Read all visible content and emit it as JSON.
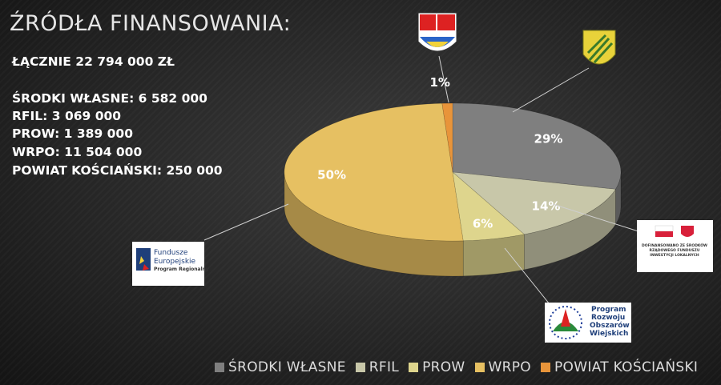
{
  "chart_data": {
    "type": "pie",
    "title": "ŹRÓDŁA FINANSOWANIA:",
    "categories": [
      "ŚRODKI WŁASNE",
      "RFIL",
      "PROW",
      "WRPO",
      "POWIAT KOŚCIAŃSKI"
    ],
    "values": [
      29,
      14,
      6,
      50,
      1
    ],
    "value_labels": [
      "29%",
      "14%",
      "6%",
      "50%",
      "1%"
    ],
    "colors": [
      "#7f7f7f",
      "#c8c7a9",
      "#ded58d",
      "#e6c062",
      "#e8943a"
    ]
  },
  "summary": [
    "ŁĄCZNIE 22 794 000 ZŁ",
    "ŚRODKI WŁASNE: 6 582 000",
    "RFIL: 3 069 000",
    "PROW: 1 389 000",
    "WRPO: 11 504 000",
    "POWIAT KOŚCIAŃSKI: 250 000"
  ],
  "logos": {
    "fe": [
      "Fundusze",
      "Europejskie",
      "Program Regionalny"
    ],
    "rfil": [
      "DOFINANSOWANO ZE ŚRODKÓW",
      "RZĄDOWEGO FUNDUSZU",
      "INWESTYCJI LOKALNYCH"
    ],
    "prow": [
      "Program",
      "Rozwoju",
      "Obszarów",
      "Wiejskich"
    ]
  }
}
